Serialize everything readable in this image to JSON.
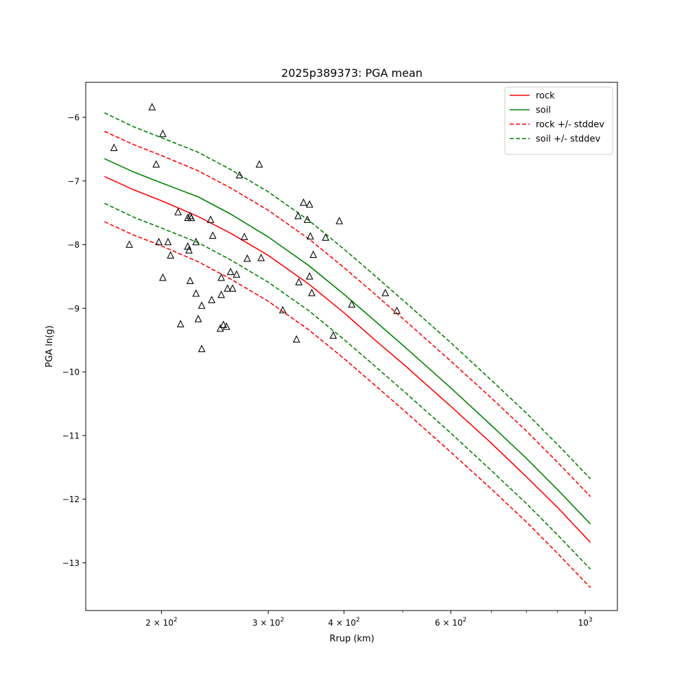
{
  "chart_data": {
    "type": "line",
    "title": "2025p389373: PGA mean",
    "xlabel": "Rrup (km)",
    "ylabel": "PGA ln(g)",
    "xscale": "log",
    "xlim": [
      150,
      1130
    ],
    "ylim": [
      -13.75,
      -5.45
    ],
    "grid": false,
    "legend_placement": "top-right",
    "x_ticks": [
      {
        "value": 200,
        "base": "2 × 10",
        "exp": "2"
      },
      {
        "value": 300,
        "base": "3 × 10",
        "exp": "2"
      },
      {
        "value": 400,
        "base": "4 × 10",
        "exp": "2"
      },
      {
        "value": 600,
        "base": "6 × 10",
        "exp": "2"
      },
      {
        "value": 1000,
        "base": "10",
        "exp": "3"
      }
    ],
    "x_minor_ticks": [
      500,
      700,
      800,
      900
    ],
    "y_ticks": [
      {
        "value": -6,
        "label": "−6"
      },
      {
        "value": -7,
        "label": "−7"
      },
      {
        "value": -8,
        "label": "−8"
      },
      {
        "value": -9,
        "label": "−9"
      },
      {
        "value": -10,
        "label": "−10"
      },
      {
        "value": -11,
        "label": "−11"
      },
      {
        "value": -12,
        "label": "−12"
      },
      {
        "value": -13,
        "label": "−13"
      }
    ],
    "series": [
      {
        "name": "rock",
        "color": "#ff0000",
        "dash": false,
        "in_legend": true,
        "x": [
          161,
          180,
          200,
          230,
          260,
          300,
          350,
          400,
          450,
          500,
          600,
          700,
          800,
          900,
          1020
        ],
        "y": [
          -6.93,
          -7.14,
          -7.31,
          -7.56,
          -7.82,
          -8.17,
          -8.62,
          -9.07,
          -9.5,
          -9.87,
          -10.54,
          -11.12,
          -11.65,
          -12.13,
          -12.68
        ]
      },
      {
        "name": "soil",
        "color": "#008000",
        "dash": false,
        "in_legend": true,
        "x": [
          161,
          180,
          200,
          230,
          260,
          300,
          350,
          400,
          450,
          500,
          600,
          700,
          800,
          900,
          1020
        ],
        "y": [
          -6.65,
          -6.86,
          -7.03,
          -7.25,
          -7.52,
          -7.88,
          -8.33,
          -8.78,
          -9.2,
          -9.58,
          -10.25,
          -10.84,
          -11.36,
          -11.85,
          -12.39
        ]
      },
      {
        "name": "rock +/- stddev",
        "color": "#ff0000",
        "dash": true,
        "in_legend": true,
        "x": [
          161,
          180,
          200,
          230,
          260,
          300,
          350,
          400,
          450,
          500,
          600,
          700,
          800,
          900,
          1020
        ],
        "y": [
          -6.22,
          -6.43,
          -6.6,
          -6.84,
          -7.11,
          -7.46,
          -7.91,
          -8.36,
          -8.78,
          -9.16,
          -9.83,
          -10.41,
          -10.93,
          -11.42,
          -11.96
        ]
      },
      {
        "name": "",
        "color": "#ff0000",
        "dash": true,
        "in_legend": false,
        "x": [
          161,
          180,
          200,
          230,
          260,
          300,
          350,
          400,
          450,
          500,
          600,
          700,
          800,
          900,
          1020
        ],
        "y": [
          -7.64,
          -7.85,
          -8.02,
          -8.27,
          -8.54,
          -8.89,
          -9.34,
          -9.79,
          -10.21,
          -10.59,
          -11.26,
          -11.84,
          -12.36,
          -12.85,
          -13.39
        ]
      },
      {
        "name": "soil +/- stddev",
        "color": "#008000",
        "dash": true,
        "in_legend": true,
        "x": [
          161,
          180,
          200,
          230,
          260,
          300,
          350,
          400,
          450,
          500,
          600,
          700,
          800,
          900,
          1020
        ],
        "y": [
          -5.93,
          -6.15,
          -6.32,
          -6.55,
          -6.82,
          -7.17,
          -7.62,
          -8.07,
          -8.49,
          -8.87,
          -9.54,
          -10.13,
          -10.65,
          -11.14,
          -11.68
        ]
      },
      {
        "name": "",
        "color": "#008000",
        "dash": true,
        "in_legend": false,
        "x": [
          161,
          180,
          200,
          230,
          260,
          300,
          350,
          400,
          450,
          500,
          600,
          700,
          800,
          900,
          1020
        ],
        "y": [
          -7.35,
          -7.57,
          -7.74,
          -7.97,
          -8.24,
          -8.59,
          -9.04,
          -9.49,
          -9.91,
          -10.29,
          -10.96,
          -11.55,
          -12.07,
          -12.56,
          -13.1
        ]
      }
    ],
    "observations": [
      {
        "x": 193,
        "y": -5.84
      },
      {
        "x": 167,
        "y": -6.48
      },
      {
        "x": 201,
        "y": -6.26
      },
      {
        "x": 196,
        "y": -6.74
      },
      {
        "x": 177,
        "y": -8.0
      },
      {
        "x": 198,
        "y": -7.96
      },
      {
        "x": 205,
        "y": -7.96
      },
      {
        "x": 207,
        "y": -8.17
      },
      {
        "x": 201,
        "y": -8.52
      },
      {
        "x": 213,
        "y": -7.49
      },
      {
        "x": 215,
        "y": -9.25
      },
      {
        "x": 221,
        "y": -7.58
      },
      {
        "x": 223,
        "y": -7.55
      },
      {
        "x": 224,
        "y": -7.58
      },
      {
        "x": 221,
        "y": -8.03
      },
      {
        "x": 222,
        "y": -8.09
      },
      {
        "x": 223,
        "y": -8.57
      },
      {
        "x": 228,
        "y": -7.96
      },
      {
        "x": 228,
        "y": -8.77
      },
      {
        "x": 230,
        "y": -9.17
      },
      {
        "x": 233,
        "y": -8.96
      },
      {
        "x": 233,
        "y": -9.64
      },
      {
        "x": 241,
        "y": -7.61
      },
      {
        "x": 243,
        "y": -7.86
      },
      {
        "x": 242,
        "y": -8.87
      },
      {
        "x": 251,
        "y": -8.52
      },
      {
        "x": 251,
        "y": -8.79
      },
      {
        "x": 250,
        "y": -9.32
      },
      {
        "x": 253,
        "y": -9.26
      },
      {
        "x": 256,
        "y": -9.29
      },
      {
        "x": 257,
        "y": -8.69
      },
      {
        "x": 260,
        "y": -8.43
      },
      {
        "x": 262,
        "y": -8.69
      },
      {
        "x": 266,
        "y": -8.47
      },
      {
        "x": 269,
        "y": -6.91
      },
      {
        "x": 274,
        "y": -7.88
      },
      {
        "x": 277,
        "y": -8.22
      },
      {
        "x": 290,
        "y": -6.74
      },
      {
        "x": 292,
        "y": -8.21
      },
      {
        "x": 317,
        "y": -9.03
      },
      {
        "x": 336,
        "y": -7.55
      },
      {
        "x": 337,
        "y": -8.59
      },
      {
        "x": 334,
        "y": -9.49
      },
      {
        "x": 343,
        "y": -7.34
      },
      {
        "x": 348,
        "y": -7.61
      },
      {
        "x": 351,
        "y": -7.37
      },
      {
        "x": 352,
        "y": -7.87
      },
      {
        "x": 351,
        "y": -8.5
      },
      {
        "x": 356,
        "y": -8.16
      },
      {
        "x": 354,
        "y": -8.76
      },
      {
        "x": 373,
        "y": -7.89
      },
      {
        "x": 384,
        "y": -9.43
      },
      {
        "x": 393,
        "y": -7.63
      },
      {
        "x": 412,
        "y": -8.94
      },
      {
        "x": 468,
        "y": -8.76
      },
      {
        "x": 489,
        "y": -9.04
      }
    ]
  }
}
